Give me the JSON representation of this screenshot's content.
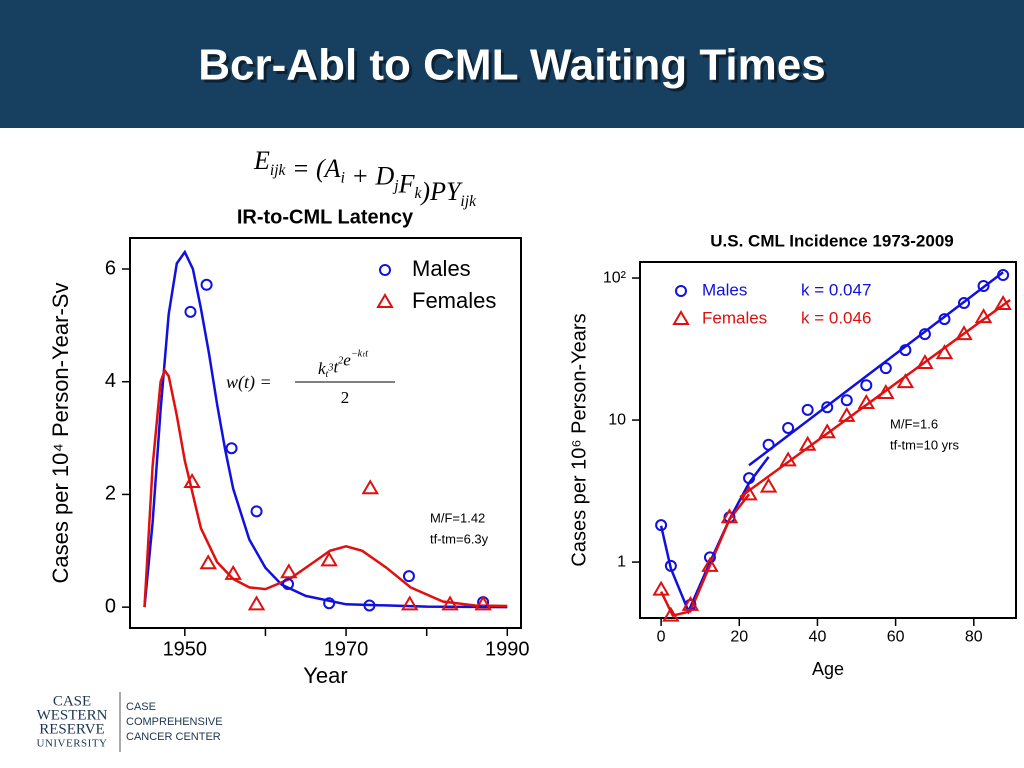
{
  "header": {
    "title": "Bcr-Abl to CML Waiting Times"
  },
  "equation": [
    {
      "text": "E",
      "sub": "ijk"
    },
    {
      "text": " = ("
    },
    {
      "text": "A",
      "sub": "i"
    },
    {
      "text": " + "
    },
    {
      "text": "D",
      "sub": "j"
    },
    {
      "text": "F",
      "sub": "k"
    },
    {
      "text": ")"
    },
    {
      "text": "PY",
      "sub": "ijk"
    }
  ],
  "chart_data": [
    {
      "type": "scatter",
      "title": "IR-to-CML Latency",
      "x_label": "Year",
      "y_label": "Cases per 10⁴ Person-Year-Sv",
      "xlim": [
        1943.2,
        1991.7
      ],
      "xticks": [
        1950,
        1970,
        1990
      ],
      "xminor": [
        1960,
        1980
      ],
      "ylim": [
        -0.37,
        6.55
      ],
      "yticks": [
        0,
        2,
        4,
        6
      ],
      "log_y": false,
      "legend": "upper right",
      "series": [
        {
          "name": "Males",
          "color": "#1010e0",
          "marker": "circle",
          "x": [
            1950.7,
            1952.7,
            1955.8,
            1958.9,
            1962.8,
            1967.9,
            1972.9,
            1977.8,
            1987.0
          ],
          "values": [
            5.24,
            5.72,
            2.82,
            1.7,
            0.41,
            0.07,
            0.03,
            0.55,
            0.09
          ]
        },
        {
          "name": "Females",
          "color": "#e01010",
          "marker": "triangle",
          "x": [
            1950.9,
            1952.9,
            1956.0,
            1958.9,
            1962.9,
            1967.9,
            1973.0,
            1977.9,
            1982.9,
            1987.0
          ],
          "values": [
            2.22,
            0.78,
            0.59,
            0.05,
            0.62,
            0.83,
            2.11,
            0.05,
            0.05,
            0.05
          ]
        }
      ],
      "fits": [
        {
          "color": "#1010e0",
          "x": [
            1945,
            1946,
            1947,
            1948,
            1949,
            1950,
            1951,
            1952,
            1953,
            1954,
            1955,
            1956,
            1958,
            1960,
            1962,
            1965,
            1970,
            1980,
            1990
          ],
          "values": [
            0,
            1.5,
            3.5,
            5.2,
            6.1,
            6.3,
            6.0,
            5.3,
            4.5,
            3.6,
            2.8,
            2.1,
            1.2,
            0.7,
            0.4,
            0.2,
            0.05,
            0.01,
            0
          ]
        },
        {
          "color": "#e01010",
          "x": [
            1945,
            1946,
            1947,
            1947.5,
            1948,
            1949,
            1950,
            1952,
            1954,
            1956,
            1958,
            1960,
            1963,
            1966,
            1968,
            1970,
            1972,
            1975,
            1978,
            1982,
            1986,
            1990
          ],
          "values": [
            0,
            2.5,
            4.0,
            4.2,
            4.1,
            3.4,
            2.6,
            1.4,
            0.8,
            0.5,
            0.35,
            0.32,
            0.5,
            0.8,
            1.0,
            1.08,
            1.0,
            0.7,
            0.35,
            0.1,
            0.03,
            0.02
          ]
        }
      ],
      "annotations": [
        "M/F=1.42",
        "tf-tm=6.3y"
      ],
      "formula": {
        "lhs": "w(t) =",
        "numerator": [
          {
            "text": "k",
            "sub": "t",
            "sup": "3"
          },
          {
            "text": "t",
            "sup": "2"
          },
          {
            "text": "e",
            "sup": "−kₜt"
          }
        ],
        "denominator": "2"
      }
    },
    {
      "type": "scatter",
      "title": "U.S. CML Incidence 1973-2009",
      "x_label": "Age",
      "y_label": "Cases per 10⁶ Person-Years",
      "xlim": [
        -5.4,
        90.8
      ],
      "xticks": [
        0,
        20,
        40,
        60,
        80
      ],
      "ylim": [
        0.404,
        129.7
      ],
      "yticks": [
        1,
        10,
        {
          "value": 100,
          "label": "10²"
        }
      ],
      "log_y": true,
      "legend": "upper left",
      "series": [
        {
          "name": "Males",
          "rate_label": "k = 0.047",
          "color": "#1010e0",
          "marker": "circle",
          "x": [
            0,
            2.5,
            7.5,
            12.5,
            17.5,
            22.5,
            27.5,
            32.5,
            37.5,
            42.5,
            47.5,
            52.5,
            57.5,
            62.5,
            67.5,
            72.5,
            77.5,
            82.5,
            87.5
          ],
          "values": [
            1.82,
            0.94,
            0.5,
            1.08,
            2.07,
            3.9,
            6.7,
            8.8,
            11.8,
            12.3,
            13.8,
            17.6,
            23.2,
            31.1,
            40.3,
            51.4,
            66.7,
            87.9,
            105
          ]
        },
        {
          "name": "Females",
          "rate_label": "k = 0.046",
          "color": "#e01010",
          "marker": "triangle",
          "x": [
            0,
            2.5,
            7.5,
            12.5,
            17.5,
            22.5,
            27.5,
            32.5,
            37.5,
            42.5,
            47.5,
            52.5,
            57.5,
            62.5,
            67.5,
            72.5,
            77.5,
            82.5,
            87.5
          ],
          "values": [
            0.64,
            0.42,
            0.5,
            0.94,
            2.07,
            3.0,
            3.4,
            5.2,
            6.7,
            8.2,
            10.7,
            13.2,
            15.5,
            18.5,
            25.2,
            29.6,
            40.3,
            53.1,
            65.6
          ]
        }
      ],
      "fits": [
        {
          "color": "#1010e0",
          "x": [
            0,
            2.5,
            7,
            12.5,
            17.5,
            22.5,
            27.5
          ],
          "values": [
            1.8,
            0.9,
            0.45,
            1.0,
            2.0,
            3.6,
            5.5
          ]
        },
        {
          "color": "#1010e0",
          "x": [
            22.5,
            87.5
          ],
          "values": [
            4.8,
            110
          ]
        },
        {
          "color": "#e01010",
          "x": [
            0,
            3,
            7.5,
            12.5,
            17.5,
            22.5
          ],
          "values": [
            0.62,
            0.42,
            0.45,
            0.95,
            2.0,
            3.0
          ]
        },
        {
          "color": "#e01010",
          "x": [
            20.2,
            89.3
          ],
          "values": [
            2.87,
            70
          ]
        }
      ],
      "annotations": [
        "M/F=1.6",
        "tf-tm=10 yrs"
      ]
    }
  ],
  "footer": {
    "university": [
      "CASE",
      "WESTERN",
      "RESERVE",
      "UNIVERSITY"
    ],
    "center": [
      "CASE",
      "COMPREHENSIVE",
      "CANCER CENTER"
    ]
  }
}
